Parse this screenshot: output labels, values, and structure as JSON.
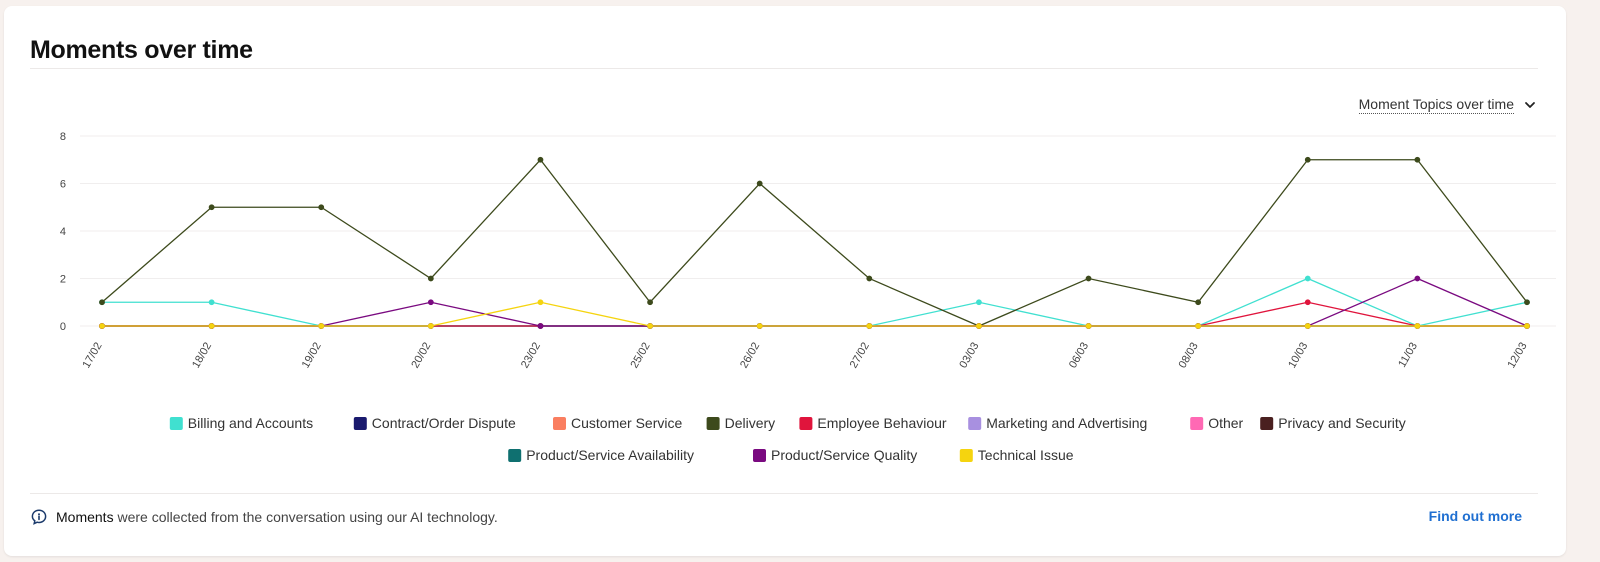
{
  "header": {
    "title": "Moments over time"
  },
  "dropdown": {
    "label": "Moment Topics over time",
    "icon": "chevron-down-icon"
  },
  "footer": {
    "icon": "moments-info-icon",
    "strong_text": "Moments",
    "text": " were collected from the conversation using our AI technology.",
    "link_label": "Find out more"
  },
  "chart_data": {
    "type": "line",
    "categories": [
      "17/02",
      "18/02",
      "19/02",
      "20/02",
      "23/02",
      "25/02",
      "26/02",
      "27/02",
      "03/03",
      "06/03",
      "08/03",
      "10/03",
      "11/03",
      "12/03"
    ],
    "ylim": [
      0,
      8
    ],
    "yticks": [
      "0",
      "2",
      "4",
      "6",
      "8"
    ],
    "grid": true,
    "legend_position": "bottom",
    "series": [
      {
        "name": "Billing and Accounts",
        "color": "#40e0d0",
        "values": [
          1,
          1,
          0,
          0,
          0,
          0,
          0,
          0,
          1,
          0,
          0,
          2,
          0,
          1
        ]
      },
      {
        "name": "Contract/Order Dispute",
        "color": "#1a1a6e",
        "values": [
          0,
          0,
          0,
          0,
          0,
          0,
          0,
          0,
          0,
          0,
          0,
          0,
          0,
          0
        ]
      },
      {
        "name": "Customer Service",
        "color": "#fa7e60",
        "values": [
          0,
          0,
          0,
          0,
          0,
          0,
          0,
          0,
          0,
          0,
          0,
          0,
          0,
          0
        ]
      },
      {
        "name": "Delivery",
        "color": "#3d4a1c",
        "values": [
          1,
          5,
          5,
          2,
          7,
          1,
          6,
          2,
          0,
          2,
          1,
          7,
          7,
          1
        ]
      },
      {
        "name": "Employee Behaviour",
        "color": "#e0143c",
        "values": [
          0,
          0,
          0,
          0,
          0,
          0,
          0,
          0,
          0,
          0,
          0,
          1,
          0,
          0
        ]
      },
      {
        "name": "Marketing and Advertising",
        "color": "#a890e0",
        "values": [
          0,
          0,
          0,
          0,
          0,
          0,
          0,
          0,
          0,
          0,
          0,
          0,
          0,
          0
        ]
      },
      {
        "name": "Other",
        "color": "#ff69b4",
        "values": [
          0,
          0,
          0,
          0,
          0,
          0,
          0,
          0,
          0,
          0,
          0,
          0,
          0,
          0
        ]
      },
      {
        "name": "Privacy and Security",
        "color": "#4a2020",
        "values": [
          0,
          0,
          0,
          0,
          0,
          0,
          0,
          0,
          0,
          0,
          0,
          0,
          0,
          0
        ]
      },
      {
        "name": "Product/Service Availability",
        "color": "#0f7070",
        "values": [
          0,
          0,
          0,
          0,
          0,
          0,
          0,
          0,
          0,
          0,
          0,
          0,
          0,
          0
        ]
      },
      {
        "name": "Product/Service Quality",
        "color": "#7a0a80",
        "values": [
          0,
          0,
          0,
          1,
          0,
          0,
          0,
          0,
          0,
          0,
          0,
          0,
          2,
          0
        ]
      },
      {
        "name": "Technical Issue",
        "color": "#f5d40f",
        "values": [
          0,
          0,
          0,
          0,
          1,
          0,
          0,
          0,
          0,
          0,
          0,
          0,
          0,
          0
        ]
      }
    ]
  }
}
